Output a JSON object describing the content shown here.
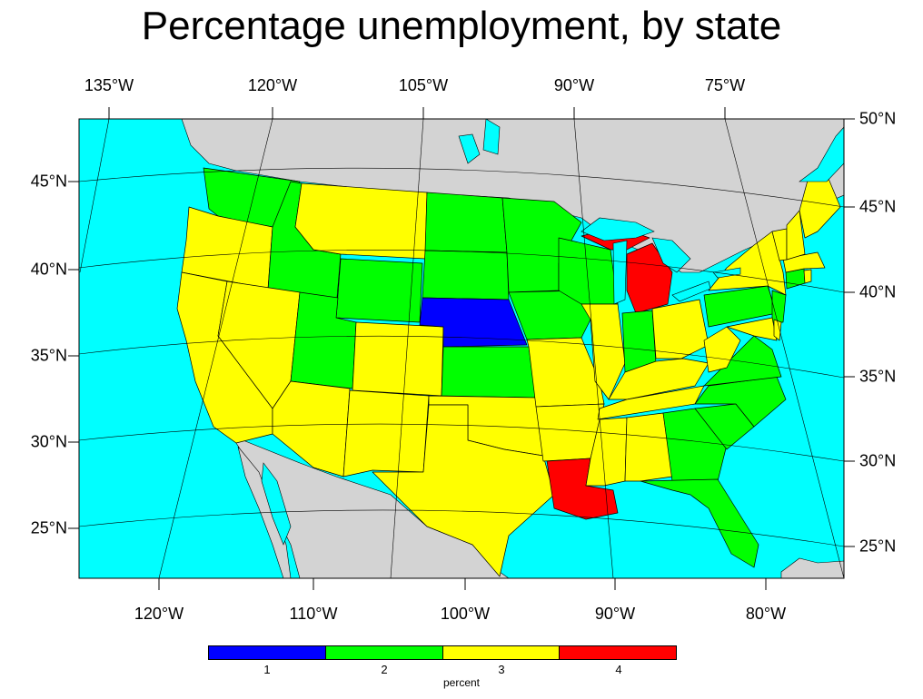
{
  "title": "Percentage unemployment, by state",
  "colors": {
    "ocean": "#00ffff",
    "land": "#d3d3d3",
    "level_1": "#0000ff",
    "level_2": "#00ff00",
    "level_3": "#ffff00",
    "level_4": "#ff0000"
  },
  "axes": {
    "top_lon_labels": [
      "135°W",
      "120°W",
      "105°W",
      "90°W",
      "75°W"
    ],
    "bottom_lon_labels": [
      "120°W",
      "110°W",
      "100°W",
      "90°W",
      "80°W"
    ],
    "left_lat_labels": [
      "45°N",
      "40°N",
      "35°N",
      "30°N",
      "25°N"
    ],
    "right_lat_labels": [
      "50°N",
      "45°N",
      "40°N",
      "35°N",
      "30°N",
      "25°N"
    ]
  },
  "legend": {
    "tick_labels": [
      "1",
      "2",
      "3",
      "4"
    ],
    "unit": "percent"
  },
  "chart_data": {
    "type": "choropleth",
    "title": "Percentage unemployment, by state",
    "unit": "percent",
    "levels": [
      1,
      2,
      3,
      4
    ],
    "states": [
      {
        "state": "Washington",
        "level": 2
      },
      {
        "state": "Oregon",
        "level": 3
      },
      {
        "state": "California",
        "level": 3
      },
      {
        "state": "Idaho",
        "level": 2
      },
      {
        "state": "Nevada",
        "level": 3
      },
      {
        "state": "Montana",
        "level": 3
      },
      {
        "state": "Wyoming",
        "level": 2
      },
      {
        "state": "Utah",
        "level": 2
      },
      {
        "state": "Arizona",
        "level": 3
      },
      {
        "state": "Colorado",
        "level": 3
      },
      {
        "state": "New Mexico",
        "level": 3
      },
      {
        "state": "North Dakota",
        "level": 2
      },
      {
        "state": "South Dakota",
        "level": 2
      },
      {
        "state": "Nebraska",
        "level": 1
      },
      {
        "state": "Kansas",
        "level": 2
      },
      {
        "state": "Oklahoma",
        "level": 3
      },
      {
        "state": "Texas",
        "level": 3
      },
      {
        "state": "Minnesota",
        "level": 2
      },
      {
        "state": "Iowa",
        "level": 2
      },
      {
        "state": "Missouri",
        "level": 3
      },
      {
        "state": "Arkansas",
        "level": 3
      },
      {
        "state": "Louisiana",
        "level": 4
      },
      {
        "state": "Wisconsin",
        "level": 2
      },
      {
        "state": "Illinois",
        "level": 3
      },
      {
        "state": "Michigan",
        "level": 4
      },
      {
        "state": "Indiana",
        "level": 2
      },
      {
        "state": "Ohio",
        "level": 3
      },
      {
        "state": "Kentucky",
        "level": 3
      },
      {
        "state": "Tennessee",
        "level": 3
      },
      {
        "state": "Mississippi",
        "level": 3
      },
      {
        "state": "Alabama",
        "level": 3
      },
      {
        "state": "Georgia",
        "level": 2
      },
      {
        "state": "Florida",
        "level": 2
      },
      {
        "state": "South Carolina",
        "level": 2
      },
      {
        "state": "North Carolina",
        "level": 2
      },
      {
        "state": "Virginia",
        "level": 2
      },
      {
        "state": "West Virginia",
        "level": 3
      },
      {
        "state": "Pennsylvania",
        "level": 2
      },
      {
        "state": "New York",
        "level": 3
      },
      {
        "state": "New Jersey",
        "level": 2
      },
      {
        "state": "Maryland",
        "level": 3
      },
      {
        "state": "Delaware",
        "level": 3
      },
      {
        "state": "Connecticut",
        "level": 2
      },
      {
        "state": "Rhode Island",
        "level": 3
      },
      {
        "state": "Massachusetts",
        "level": 3
      },
      {
        "state": "Vermont",
        "level": 3
      },
      {
        "state": "New Hampshire",
        "level": 3
      },
      {
        "state": "Maine",
        "level": 3
      }
    ]
  }
}
